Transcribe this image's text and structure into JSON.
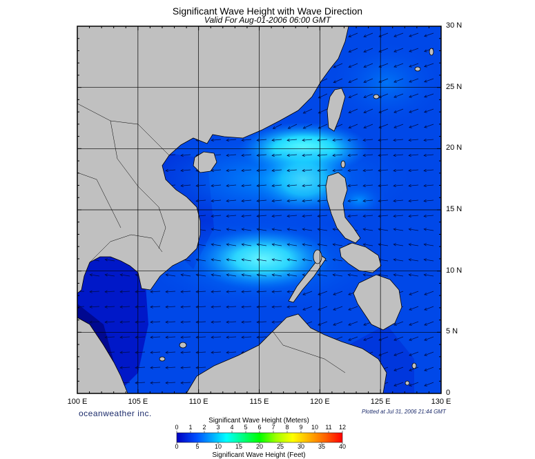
{
  "title": "Significant Wave Height with Wave Direction",
  "valid": "Valid For Aug-01-2006 06:00 GMT",
  "lat_labels": [
    "30 N",
    "25 N",
    "20 N",
    "15 N",
    "10 N",
    "5 N",
    "0"
  ],
  "lon_labels": [
    "100 E",
    "105 E",
    "110 E",
    "115 E",
    "120 E",
    "125 E",
    "130 E"
  ],
  "brand": "oceanweather inc.",
  "plotted": "Plotted at Jul 31, 2006 21:44 GMT",
  "legend": {
    "title_meters": "Significant Wave Height (Meters)",
    "title_feet": "Significant Wave Height (Feet)",
    "meter_ticks": [
      "0",
      "1",
      "2",
      "3",
      "4",
      "5",
      "6",
      "7",
      "8",
      "9",
      "10",
      "11",
      "12"
    ],
    "feet_ticks": [
      "0",
      "5",
      "10",
      "15",
      "20",
      "25",
      "30",
      "35",
      "40"
    ]
  },
  "colors": {
    "land": "#c0c0c0",
    "deep_blue": "#0000b0",
    "mid_blue": "#0060ff",
    "light_cyan": "#40f0ff"
  },
  "map": {
    "lon_range": [
      100,
      130
    ],
    "lat_range": [
      0,
      30
    ],
    "grid_step_deg": 5
  }
}
